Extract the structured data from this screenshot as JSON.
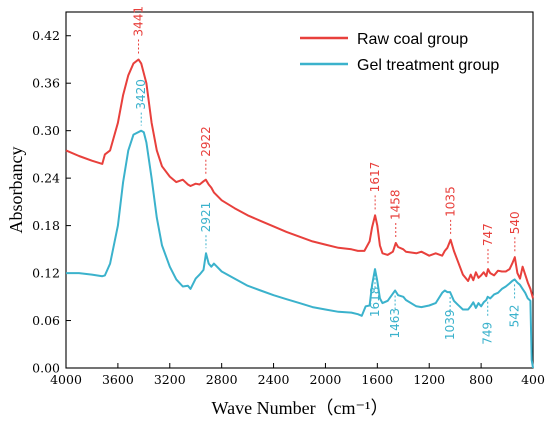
{
  "chart_data": {
    "type": "line",
    "xlabel": "Wave Number（cm⁻¹）",
    "ylabel": "Absorbancy",
    "xlim": [
      4000,
      400
    ],
    "ylim": [
      0,
      0.45
    ],
    "x_reversed": true,
    "xticks": [
      4000,
      3600,
      3200,
      2800,
      2400,
      2000,
      1600,
      1200,
      800,
      400
    ],
    "yticks": [
      "0.00",
      "0.06",
      "0.12",
      "0.18",
      "0.24",
      "0.30",
      "0.36",
      "0.42"
    ],
    "ytick_values": [
      0,
      0.06,
      0.12,
      0.18,
      0.24,
      0.3,
      0.36,
      0.42
    ],
    "legend_position": "top-right",
    "grid": false,
    "series": [
      {
        "name": "Raw coal group",
        "color": "#e8403c",
        "x": [
          4000,
          3900,
          3800,
          3720,
          3700,
          3660,
          3600,
          3560,
          3520,
          3480,
          3441,
          3420,
          3380,
          3340,
          3300,
          3260,
          3200,
          3150,
          3100,
          3060,
          3040,
          3000,
          2970,
          2940,
          2922,
          2900,
          2880,
          2860,
          2800,
          2700,
          2600,
          2500,
          2400,
          2300,
          2200,
          2100,
          2000,
          1900,
          1800,
          1750,
          1700,
          1660,
          1640,
          1617,
          1600,
          1580,
          1560,
          1520,
          1480,
          1458,
          1440,
          1400,
          1380,
          1300,
          1260,
          1200,
          1150,
          1100,
          1080,
          1060,
          1035,
          1010,
          980,
          940,
          900,
          880,
          860,
          840,
          820,
          800,
          780,
          760,
          747,
          730,
          700,
          670,
          640,
          610,
          580,
          560,
          540,
          520,
          500,
          480,
          460,
          440,
          420,
          400
        ],
        "y": [
          0.275,
          0.268,
          0.262,
          0.258,
          0.27,
          0.275,
          0.31,
          0.345,
          0.37,
          0.385,
          0.39,
          0.385,
          0.36,
          0.31,
          0.275,
          0.255,
          0.242,
          0.235,
          0.238,
          0.232,
          0.23,
          0.233,
          0.232,
          0.236,
          0.238,
          0.232,
          0.228,
          0.222,
          0.212,
          0.202,
          0.193,
          0.186,
          0.179,
          0.172,
          0.166,
          0.16,
          0.156,
          0.152,
          0.15,
          0.148,
          0.148,
          0.16,
          0.178,
          0.193,
          0.18,
          0.155,
          0.145,
          0.143,
          0.147,
          0.158,
          0.153,
          0.15,
          0.147,
          0.145,
          0.147,
          0.142,
          0.145,
          0.142,
          0.148,
          0.152,
          0.162,
          0.148,
          0.135,
          0.118,
          0.11,
          0.118,
          0.111,
          0.121,
          0.114,
          0.117,
          0.121,
          0.116,
          0.125,
          0.12,
          0.117,
          0.123,
          0.122,
          0.122,
          0.125,
          0.132,
          0.14,
          0.12,
          0.113,
          0.128,
          0.118,
          0.108,
          0.1,
          0.088
        ]
      },
      {
        "name": "Gel treatment group",
        "color": "#3bb2cc",
        "x": [
          4000,
          3900,
          3800,
          3720,
          3700,
          3660,
          3600,
          3560,
          3520,
          3480,
          3420,
          3400,
          3380,
          3340,
          3300,
          3260,
          3200,
          3150,
          3100,
          3060,
          3040,
          3000,
          2970,
          2940,
          2921,
          2900,
          2880,
          2860,
          2800,
          2700,
          2600,
          2500,
          2400,
          2300,
          2200,
          2100,
          2000,
          1900,
          1800,
          1750,
          1720,
          1690,
          1660,
          1640,
          1618,
          1600,
          1580,
          1560,
          1520,
          1480,
          1463,
          1440,
          1400,
          1380,
          1300,
          1260,
          1200,
          1150,
          1100,
          1080,
          1060,
          1039,
          1010,
          980,
          940,
          900,
          880,
          860,
          840,
          820,
          800,
          780,
          760,
          749,
          730,
          700,
          670,
          640,
          610,
          580,
          560,
          542,
          520,
          500,
          480,
          460,
          440,
          420,
          410,
          400
        ],
        "y": [
          0.12,
          0.12,
          0.118,
          0.116,
          0.117,
          0.132,
          0.18,
          0.235,
          0.275,
          0.295,
          0.3,
          0.298,
          0.285,
          0.24,
          0.19,
          0.155,
          0.128,
          0.112,
          0.103,
          0.104,
          0.1,
          0.113,
          0.118,
          0.124,
          0.145,
          0.132,
          0.128,
          0.132,
          0.122,
          0.113,
          0.104,
          0.098,
          0.092,
          0.087,
          0.082,
          0.077,
          0.074,
          0.071,
          0.07,
          0.068,
          0.066,
          0.078,
          0.079,
          0.105,
          0.125,
          0.11,
          0.088,
          0.082,
          0.085,
          0.094,
          0.098,
          0.092,
          0.09,
          0.086,
          0.078,
          0.077,
          0.079,
          0.082,
          0.095,
          0.098,
          0.096,
          0.096,
          0.085,
          0.08,
          0.074,
          0.074,
          0.078,
          0.083,
          0.076,
          0.082,
          0.078,
          0.083,
          0.086,
          0.09,
          0.088,
          0.093,
          0.095,
          0.1,
          0.103,
          0.107,
          0.11,
          0.112,
          0.108,
          0.105,
          0.1,
          0.095,
          0.088,
          0.085,
          0.01,
          0.0
        ]
      }
    ],
    "annotations": [
      {
        "series": 0,
        "label": "3441",
        "x": 3441,
        "y": 0.39
      },
      {
        "series": 0,
        "label": "2922",
        "x": 2922,
        "y": 0.238
      },
      {
        "series": 0,
        "label": "1617",
        "x": 1617,
        "y": 0.193
      },
      {
        "series": 0,
        "label": "1458",
        "x": 1458,
        "y": 0.158
      },
      {
        "series": 0,
        "label": "1035",
        "x": 1035,
        "y": 0.162
      },
      {
        "series": 0,
        "label": "747",
        "x": 747,
        "y": 0.125
      },
      {
        "series": 0,
        "label": "540",
        "x": 540,
        "y": 0.14
      },
      {
        "series": 1,
        "label": "3420",
        "x": 3420,
        "y": 0.3
      },
      {
        "series": 1,
        "label": "2921",
        "x": 2921,
        "y": 0.145
      },
      {
        "series": 1,
        "label": "1618",
        "x": 1618,
        "y": 0.125
      },
      {
        "series": 1,
        "label": "1463",
        "x": 1463,
        "y": 0.098
      },
      {
        "series": 1,
        "label": "1039",
        "x": 1039,
        "y": 0.096
      },
      {
        "series": 1,
        "label": "749",
        "x": 749,
        "y": 0.09
      },
      {
        "series": 1,
        "label": "542",
        "x": 542,
        "y": 0.112
      }
    ]
  }
}
